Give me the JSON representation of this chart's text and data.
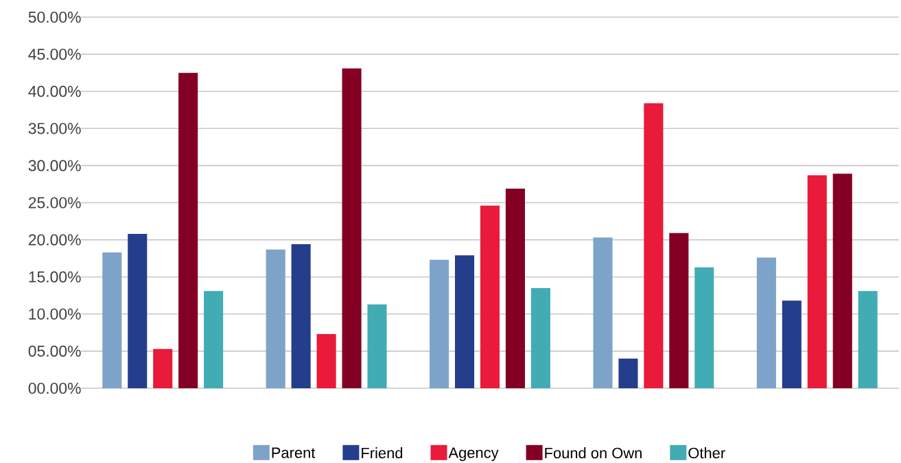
{
  "chart_data": {
    "type": "bar",
    "categories": [
      null,
      null,
      null,
      null,
      null
    ],
    "series": [
      {
        "name": "Parent",
        "color": "#7ea3c8",
        "values": [
          18.3,
          18.7,
          17.3,
          20.3,
          17.6
        ]
      },
      {
        "name": "Friend",
        "color": "#243e8c",
        "values": [
          20.8,
          19.4,
          17.9,
          4.0,
          11.8
        ]
      },
      {
        "name": "Agency",
        "color": "#e91a3a",
        "values": [
          5.3,
          7.3,
          24.6,
          38.4,
          28.7
        ]
      },
      {
        "name": "Found on Own",
        "color": "#830024",
        "values": [
          42.5,
          43.1,
          26.9,
          20.9,
          28.9
        ]
      },
      {
        "name": "Other",
        "color": "#42acb4",
        "values": [
          13.1,
          11.3,
          13.5,
          16.3,
          13.1
        ]
      }
    ],
    "ylim": [
      0,
      50
    ],
    "yticks": [
      {
        "value": 0,
        "label": "00.00%"
      },
      {
        "value": 5,
        "label": "05.00%"
      },
      {
        "value": 10,
        "label": "10.00%"
      },
      {
        "value": 15,
        "label": "15.00%"
      },
      {
        "value": 20,
        "label": "20.00%"
      },
      {
        "value": 25,
        "label": "25.00%"
      },
      {
        "value": 30,
        "label": "30.00%"
      },
      {
        "value": 35,
        "label": "35.00%"
      },
      {
        "value": 40,
        "label": "40.00%"
      },
      {
        "value": 45,
        "label": "45.00%"
      },
      {
        "value": 50,
        "label": "50.00%"
      }
    ],
    "grid": "y",
    "legend": "bottom"
  }
}
